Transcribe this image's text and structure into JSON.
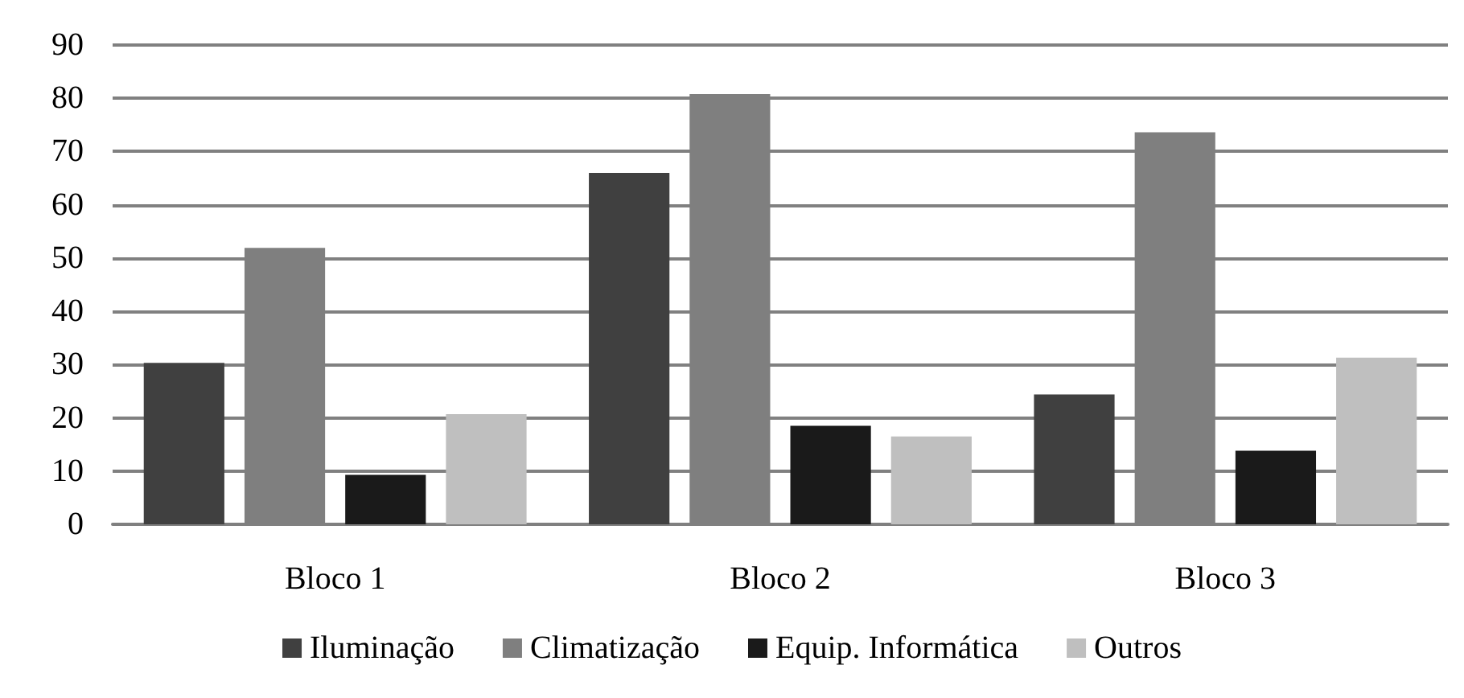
{
  "chart_data": {
    "type": "bar",
    "categories": [
      "Bloco 1",
      "Bloco 2",
      "Bloco 3"
    ],
    "series": [
      {
        "name": "Iluminação",
        "color": "#404040",
        "values": [
          30.3,
          66,
          24.4
        ]
      },
      {
        "name": "Climatização",
        "color": "#7f7f7f",
        "values": [
          51.9,
          80.8,
          73.6
        ]
      },
      {
        "name": "Equip. Informática",
        "color": "#1a1a1a",
        "values": [
          9.3,
          18.5,
          13.8
        ]
      },
      {
        "name": "Outros",
        "color": "#bfbfbf",
        "values": [
          20.7,
          16.5,
          31.3
        ]
      }
    ],
    "ylim": [
      0,
      90
    ],
    "yticks": [
      0,
      10,
      20,
      30,
      40,
      50,
      60,
      70,
      80,
      90
    ],
    "grid": "y",
    "legend": "bottom"
  }
}
